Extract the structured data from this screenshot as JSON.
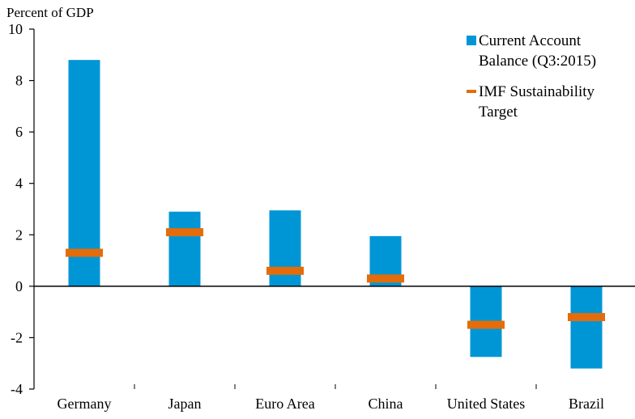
{
  "chart_data": {
    "type": "bar",
    "title": "",
    "ylabel": "Percent of GDP",
    "xlabel": "",
    "ylim": [
      -4,
      10
    ],
    "yticks": [
      -4,
      -2,
      0,
      2,
      4,
      6,
      8,
      10
    ],
    "ytick_labels": [
      "-4",
      "-2",
      "0",
      "2",
      "4",
      "6",
      "8",
      "10"
    ],
    "categories": [
      "Germany",
      "Japan",
      "Euro Area",
      "China",
      "United States",
      "Brazil"
    ],
    "series": [
      {
        "name_lines": [
          "Current Account",
          "Balance (Q3:2015)"
        ],
        "kind": "bar",
        "color": "#0096d6",
        "values": [
          8.8,
          2.9,
          2.95,
          1.95,
          -2.75,
          -3.2
        ]
      },
      {
        "name_lines": [
          "IMF Sustainability",
          "Target"
        ],
        "kind": "marker",
        "color": "#e46c0a",
        "values": [
          1.3,
          2.1,
          0.6,
          0.3,
          -1.5,
          -1.2
        ]
      }
    ],
    "legend_position": "top-right",
    "grid": false
  }
}
